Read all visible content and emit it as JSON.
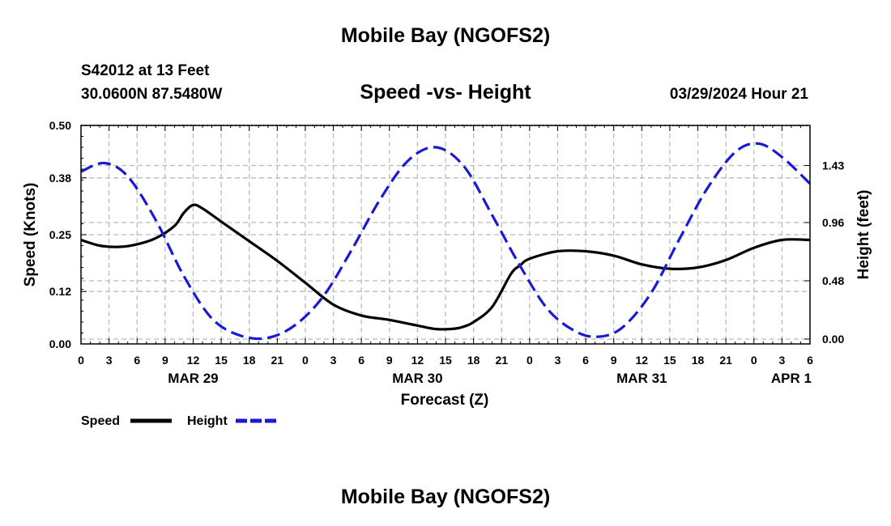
{
  "header": {
    "title": "Mobile Bay (NGOFS2)",
    "station": "S42012 at 13 Feet",
    "coords": "30.0600N  87.5480W",
    "subtitle": "Speed -vs- Height",
    "timestamp": "03/29/2024 Hour 21"
  },
  "footer": {
    "title": "Mobile Bay (NGOFS2)"
  },
  "colors": {
    "speed": "#000000",
    "height": "#1a1ad4",
    "grid": "#bbbbbb"
  },
  "chart_data": {
    "type": "line",
    "title": "Speed -vs- Height",
    "xlabel": "Forecast (Z)",
    "ylabel": "Speed (Knots)",
    "ylabel_right": "Height (feet)",
    "x_unit": "hours since MAR 29 00Z",
    "xlim": [
      0,
      78
    ],
    "ylim": [
      0,
      0.5
    ],
    "ylim_right": [
      -0.04,
      1.76
    ],
    "x_ticks": [
      0,
      3,
      6,
      9,
      12,
      15,
      18,
      21,
      24,
      27,
      30,
      33,
      36,
      39,
      42,
      45,
      48,
      51,
      54,
      57,
      60,
      63,
      66,
      69,
      72,
      75,
      78
    ],
    "x_tick_labels": [
      "0",
      "3",
      "6",
      "9",
      "12",
      "15",
      "18",
      "21",
      "0",
      "3",
      "6",
      "9",
      "12",
      "15",
      "18",
      "21",
      "0",
      "3",
      "6",
      "9",
      "12",
      "15",
      "18",
      "21",
      "0",
      "3",
      "6"
    ],
    "y_ticks": [
      0.0,
      0.12,
      0.25,
      0.38,
      0.5
    ],
    "y_tick_labels": [
      "0.00",
      "0.12",
      "0.25",
      "0.38",
      "0.50"
    ],
    "y_right_ticks": [
      0.0,
      0.48,
      0.96,
      1.43
    ],
    "y_right_tick_labels": [
      "0.00",
      "0.48",
      "0.96",
      "1.43"
    ],
    "day_labels": [
      {
        "x": 12,
        "label": "MAR 29"
      },
      {
        "x": 36,
        "label": "MAR 30"
      },
      {
        "x": 60,
        "label": "MAR 31"
      },
      {
        "x": 76,
        "label": "APR 1"
      }
    ],
    "legend": [
      {
        "name": "Speed",
        "style": "solid"
      },
      {
        "name": "Height",
        "style": "dashed"
      }
    ],
    "series": [
      {
        "name": "Speed",
        "axis": "left",
        "style": "solid",
        "x": [
          0,
          2,
          4,
          6,
          8,
          10,
          11,
          12,
          13,
          15,
          18,
          21,
          24,
          27,
          30,
          33,
          36,
          38,
          40,
          41,
          42,
          44,
          46,
          47,
          48,
          51,
          54,
          57,
          60,
          63,
          66,
          69,
          72,
          75,
          78
        ],
        "values": [
          0.238,
          0.225,
          0.222,
          0.228,
          0.242,
          0.27,
          0.3,
          0.318,
          0.31,
          0.28,
          0.235,
          0.19,
          0.14,
          0.09,
          0.065,
          0.055,
          0.042,
          0.034,
          0.035,
          0.04,
          0.05,
          0.085,
          0.16,
          0.18,
          0.195,
          0.212,
          0.212,
          0.202,
          0.182,
          0.172,
          0.175,
          0.192,
          0.22,
          0.238,
          0.238
        ]
      },
      {
        "name": "Height",
        "axis": "right",
        "style": "dashed",
        "x": [
          0,
          2.5,
          5,
          8,
          11,
          14,
          17,
          20,
          23,
          26,
          29,
          32,
          35,
          38,
          41,
          44,
          47,
          50,
          53,
          55.5,
          58,
          61,
          64,
          67,
          70,
          72.5,
          75,
          78
        ],
        "values": [
          1.38,
          1.45,
          1.34,
          0.98,
          0.52,
          0.17,
          0.03,
          0.01,
          0.12,
          0.36,
          0.74,
          1.15,
          1.47,
          1.58,
          1.42,
          1.02,
          0.6,
          0.24,
          0.06,
          0.02,
          0.1,
          0.38,
          0.82,
          1.24,
          1.54,
          1.61,
          1.5,
          1.28
        ]
      }
    ]
  }
}
